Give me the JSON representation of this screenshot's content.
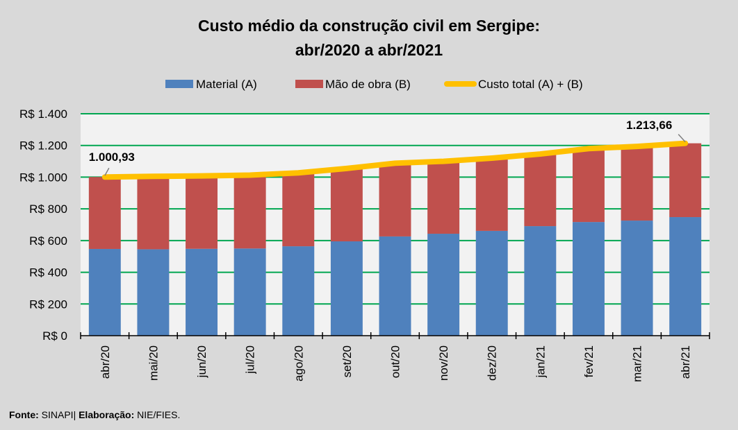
{
  "chart_data": {
    "type": "bar",
    "stacked": true,
    "title": [
      "Custo médio da construção civil em Sergipe:",
      "abr/2020 a abr/2021"
    ],
    "xlabel": "",
    "ylabel": "",
    "categories": [
      "abr/20",
      "mai/20",
      "jun/20",
      "jul/20",
      "ago/20",
      "set/20",
      "out/20",
      "nov/20",
      "dez/20",
      "jan/21",
      "fev/21",
      "mar/21",
      "abr/21"
    ],
    "series": [
      {
        "name": "Material (A)",
        "type": "bar",
        "color": "#4f81bd",
        "values": [
          547,
          545,
          548,
          550,
          564,
          595,
          626,
          643,
          661,
          691,
          717,
          726,
          748
        ]
      },
      {
        "name": "Mão de obra (B)",
        "type": "bar",
        "color": "#c0504d",
        "values": [
          453.93,
          460,
          460,
          463,
          463,
          460,
          462,
          457,
          459,
          455,
          463,
          468,
          465.66
        ]
      },
      {
        "name": "Custo total (A) + (B)",
        "type": "line",
        "color": "#ffc000",
        "values": [
          1000.93,
          1005,
          1008,
          1013,
          1027,
          1055,
          1088,
          1100,
          1120,
          1146,
          1180,
          1194,
          1213.66
        ]
      }
    ],
    "data_labels": [
      {
        "category": "abr/20",
        "series": "Custo total (A) + (B)",
        "text": "1.000,93"
      },
      {
        "category": "abr/21",
        "series": "Custo total (A) + (B)",
        "text": "1.213,66"
      }
    ],
    "ylim": [
      0,
      1400
    ],
    "yticks": [
      0,
      200,
      400,
      600,
      800,
      1000,
      1200,
      1400
    ],
    "ytick_labels": [
      "R$ 0",
      "R$ 200",
      "R$ 400",
      "R$ 600",
      "R$ 800",
      "R$ 1.000",
      "R$ 1.200",
      "R$ 1.400"
    ],
    "grid": true,
    "legend_position": "top",
    "colors": {
      "gridline": "#00a650",
      "plot_bg": "#f2f2f2",
      "page_bg": "#d9d9d9"
    }
  },
  "footer": {
    "source_label": "Fonte:",
    "source_value": "SINAPI",
    "separator": "|",
    "author_label": "Elaboração:",
    "author_value": "NIE/FIES."
  }
}
